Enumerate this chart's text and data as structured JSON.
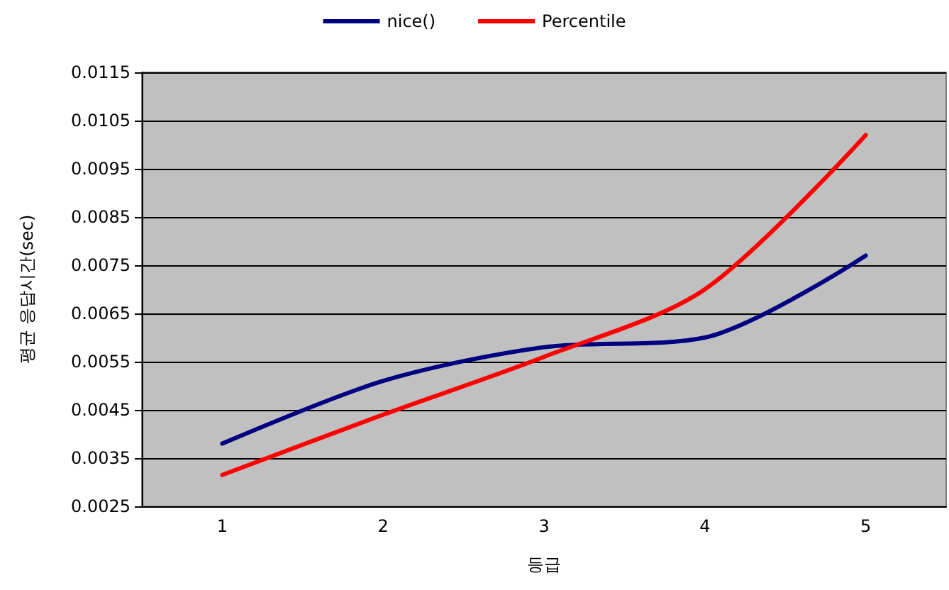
{
  "chart_data": {
    "type": "line",
    "xlabel": "등급",
    "ylabel": "평균 응답시간(sec)",
    "categories": [
      "1",
      "2",
      "3",
      "4",
      "5"
    ],
    "series": [
      {
        "name": "nice()",
        "color": "#000080",
        "values": [
          0.0038,
          0.0051,
          0.0058,
          0.006,
          0.0077
        ]
      },
      {
        "name": "Percentile",
        "color": "#ff0000",
        "values": [
          0.00315,
          0.0044,
          0.0056,
          0.007,
          0.0102
        ]
      }
    ],
    "ylim": [
      0.0025,
      0.0115
    ],
    "yticks": [
      0.0025,
      0.0035,
      0.0045,
      0.0055,
      0.0065,
      0.0075,
      0.0085,
      0.0095,
      0.0105,
      0.0115
    ],
    "grid": "y",
    "legend": "top",
    "marker": "none",
    "line_style": "solid"
  }
}
